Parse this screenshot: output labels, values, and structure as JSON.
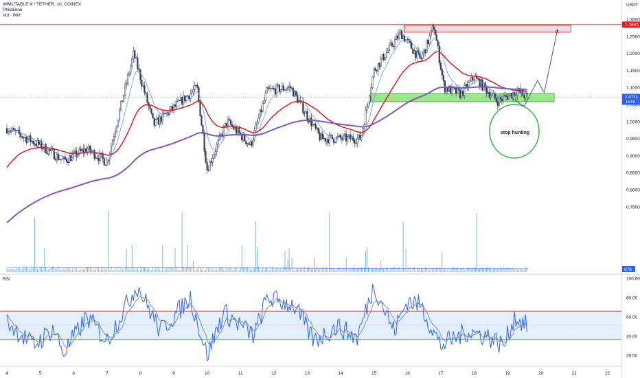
{
  "header": {
    "symbol_line": "IMMUTABLE X / TETHER, 1h, COINEX",
    "author": "Philakone",
    "volume_label": "Vol · IMX",
    "currency": "USDT",
    "rsi_label": "RSI"
  },
  "annotation": {
    "stop_hunting": "stop hunting"
  },
  "colors": {
    "up_candle": "#2a3550",
    "red_ma": "#e81a1a",
    "purple_ma": "#7e57c2",
    "blue_ma": "#5b9bd5",
    "resistance_fill": "#f8d7da",
    "support_fill": "#7ddc6a",
    "circle": "#37b24d",
    "rsi_line": "#2962ff",
    "rsi_ma": "#808080"
  },
  "chart_data": [
    {
      "type": "candlestick",
      "title": "IMMUTABLE X / TETHER, 1h, COINEX",
      "ylabel": "USDT",
      "y_ticks": [
        1.3,
        1.25,
        1.2,
        1.15,
        1.1,
        1.05,
        1.0,
        0.95,
        0.9,
        0.85,
        0.8,
        0.75
      ],
      "ylim": [
        0.71,
        1.3
      ],
      "x_ticks": [
        "4",
        "5",
        "6",
        "7",
        "8",
        "9",
        "10",
        "11",
        "12",
        "13",
        "14",
        "15",
        "16",
        "17",
        "18",
        "19",
        "20",
        "21",
        "22"
      ],
      "last_price_label": "1.0711",
      "last_price_countdown": "19:55",
      "last_price": 1.0711,
      "resistance_level_label": "1.2842",
      "resistance_level": 1.2842,
      "volume_label_value": "878",
      "key_points": [
        {
          "x": "4",
          "price": 0.98
        },
        {
          "x": "5",
          "price": 0.93
        },
        {
          "x": "5.7",
          "price": 0.885
        },
        {
          "x": "6.4",
          "price": 0.92
        },
        {
          "x": "7",
          "price": 0.88
        },
        {
          "x": "7.8",
          "price": 1.2
        },
        {
          "x": "8.4",
          "price": 0.99
        },
        {
          "x": "9.7",
          "price": 1.1
        },
        {
          "x": "10",
          "price": 0.86
        },
        {
          "x": "10.6",
          "price": 1.0
        },
        {
          "x": "11.3",
          "price": 0.93
        },
        {
          "x": "11.8",
          "price": 1.09
        },
        {
          "x": "12.5",
          "price": 1.1
        },
        {
          "x": "13.4",
          "price": 0.95
        },
        {
          "x": "14.6",
          "price": 0.95
        },
        {
          "x": "15",
          "price": 1.15
        },
        {
          "x": "15.8",
          "price": 1.26
        },
        {
          "x": "16.4",
          "price": 1.18
        },
        {
          "x": "16.8",
          "price": 1.28
        },
        {
          "x": "17.1",
          "price": 1.1
        },
        {
          "x": "17.6",
          "price": 1.08
        },
        {
          "x": "18",
          "price": 1.13
        },
        {
          "x": "18.7",
          "price": 1.06
        },
        {
          "x": "19.3",
          "price": 1.09
        },
        {
          "x": "19.6",
          "price": 1.07
        }
      ],
      "projection": [
        {
          "x": "19.1",
          "price": 1.07
        },
        {
          "x": "19.5",
          "price": 1.045
        },
        {
          "x": "19.9",
          "price": 1.12
        },
        {
          "x": "20.1",
          "price": 1.085
        },
        {
          "x": "20.5",
          "price": 1.27
        }
      ],
      "zones": [
        {
          "name": "resistance",
          "from": "15.9",
          "to": "20.9",
          "low": 1.262,
          "high": 1.283
        },
        {
          "name": "support",
          "from": "14.9",
          "to": "20.4",
          "low": 1.058,
          "high": 1.082
        }
      ]
    },
    {
      "type": "line",
      "title": "RSI",
      "y_ticks": [
        100,
        80,
        60,
        40,
        20
      ],
      "ylim": [
        0,
        100
      ],
      "upper_band": 70,
      "lower_band": 30,
      "key_points": [
        {
          "x": "4",
          "rsi": 55
        },
        {
          "x": "4.8",
          "rsi": 30
        },
        {
          "x": "5.4",
          "rsi": 48
        },
        {
          "x": "5.7",
          "rsi": 22
        },
        {
          "x": "6.4",
          "rsi": 60
        },
        {
          "x": "7",
          "rsi": 35
        },
        {
          "x": "7.9",
          "rsi": 93
        },
        {
          "x": "8.6",
          "rsi": 45
        },
        {
          "x": "9.5",
          "rsi": 80
        },
        {
          "x": "10",
          "rsi": 20
        },
        {
          "x": "10.5",
          "rsi": 65
        },
        {
          "x": "11.4",
          "rsi": 40
        },
        {
          "x": "11.8",
          "rsi": 80
        },
        {
          "x": "12.6",
          "rsi": 72
        },
        {
          "x": "13.2",
          "rsi": 35
        },
        {
          "x": "13.9",
          "rsi": 50
        },
        {
          "x": "14.5",
          "rsi": 38
        },
        {
          "x": "15",
          "rsi": 93
        },
        {
          "x": "15.6",
          "rsi": 45
        },
        {
          "x": "16",
          "rsi": 77
        },
        {
          "x": "16.4",
          "rsi": 72
        },
        {
          "x": "17",
          "rsi": 30
        },
        {
          "x": "17.8",
          "rsi": 45
        },
        {
          "x": "18.4",
          "rsi": 40
        },
        {
          "x": "18.9",
          "rsi": 30
        },
        {
          "x": "19.2",
          "rsi": 60
        },
        {
          "x": "19.6",
          "rsi": 50
        }
      ]
    }
  ]
}
